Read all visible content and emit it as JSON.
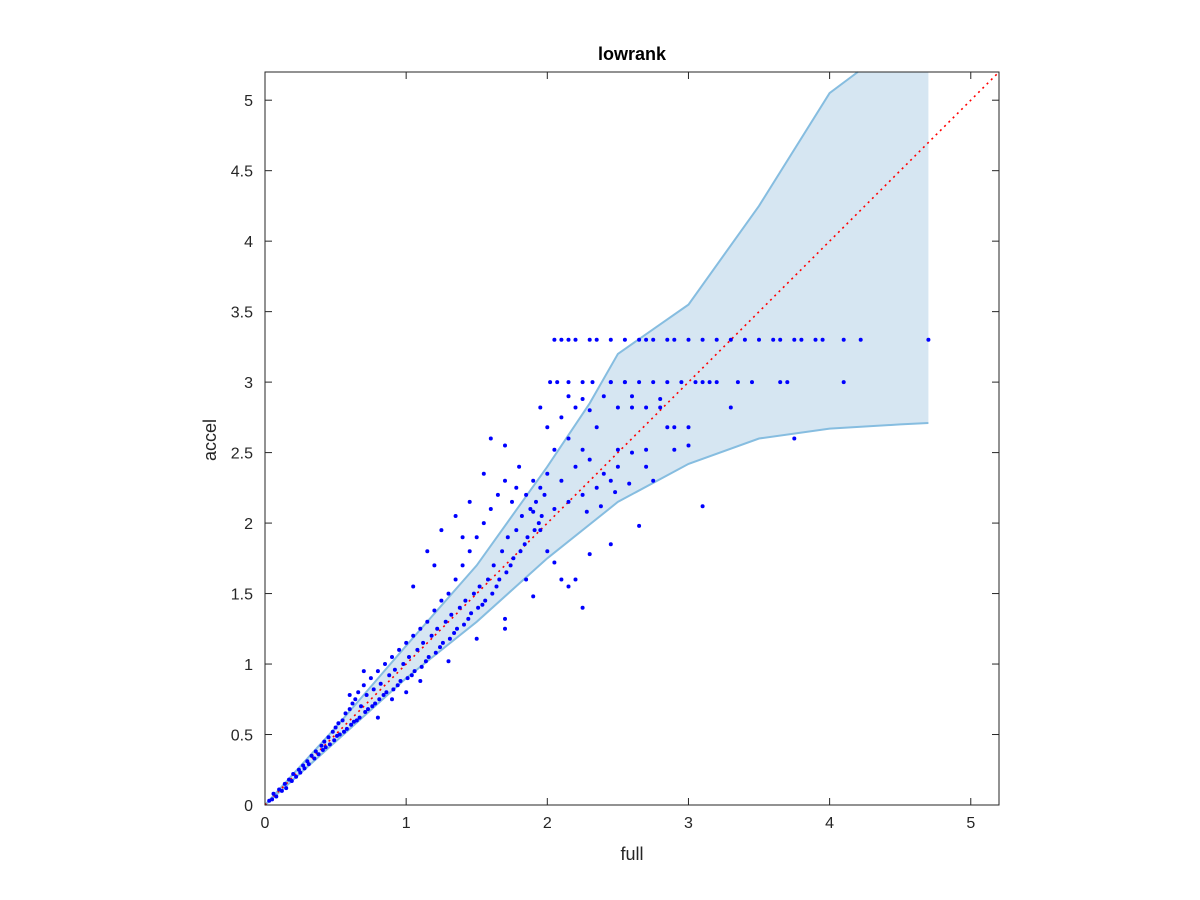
{
  "chart_data": {
    "type": "scatter",
    "title": "lowrank",
    "xlabel": "full",
    "ylabel": "accel",
    "xlim": [
      0,
      5.2
    ],
    "ylim": [
      0,
      5.2
    ],
    "xticks": [
      0,
      1,
      2,
      3,
      4,
      5
    ],
    "yticks": [
      0,
      0.5,
      1,
      1.5,
      2,
      2.5,
      3,
      3.5,
      4,
      4.5,
      5
    ],
    "xtick_labels": [
      "0",
      "1",
      "2",
      "3",
      "4",
      "5"
    ],
    "ytick_labels": [
      "0",
      "0.5",
      "1",
      "1.5",
      "2",
      "2.5",
      "3",
      "3.5",
      "4",
      "4.5",
      "5"
    ],
    "grid": false,
    "reference_line": {
      "style": "dotted",
      "color": "#ff0000",
      "from": [
        0,
        0
      ],
      "to": [
        5.2,
        5.2
      ]
    },
    "band": {
      "color": "#d6e6f2",
      "edge_color": "#86bde0",
      "upper": [
        [
          0,
          0
        ],
        [
          0.5,
          0.55
        ],
        [
          1,
          1.13
        ],
        [
          1.5,
          1.7
        ],
        [
          2,
          2.4
        ],
        [
          2.3,
          2.85
        ],
        [
          2.5,
          3.2
        ],
        [
          3,
          3.55
        ],
        [
          3.5,
          4.25
        ],
        [
          4,
          5.05
        ],
        [
          4.2,
          5.25
        ],
        [
          4.7,
          5.25
        ]
      ],
      "lower": [
        [
          0,
          0
        ],
        [
          0.5,
          0.45
        ],
        [
          1,
          0.9
        ],
        [
          1.5,
          1.3
        ],
        [
          2,
          1.75
        ],
        [
          2.5,
          2.15
        ],
        [
          3,
          2.42
        ],
        [
          3.5,
          2.6
        ],
        [
          4,
          2.67
        ],
        [
          4.5,
          2.7
        ],
        [
          4.7,
          2.71
        ]
      ]
    },
    "series": [
      {
        "marker_color": "#0000ff",
        "points": [
          [
            0.03,
            0.03
          ],
          [
            0.05,
            0.04
          ],
          [
            0.06,
            0.08
          ],
          [
            0.08,
            0.06
          ],
          [
            0.1,
            0.11
          ],
          [
            0.12,
            0.1
          ],
          [
            0.14,
            0.15
          ],
          [
            0.15,
            0.12
          ],
          [
            0.17,
            0.18
          ],
          [
            0.19,
            0.17
          ],
          [
            0.2,
            0.22
          ],
          [
            0.22,
            0.2
          ],
          [
            0.24,
            0.25
          ],
          [
            0.25,
            0.23
          ],
          [
            0.27,
            0.28
          ],
          [
            0.28,
            0.26
          ],
          [
            0.3,
            0.31
          ],
          [
            0.31,
            0.29
          ],
          [
            0.33,
            0.35
          ],
          [
            0.35,
            0.33
          ],
          [
            0.36,
            0.38
          ],
          [
            0.38,
            0.36
          ],
          [
            0.4,
            0.42
          ],
          [
            0.41,
            0.39
          ],
          [
            0.42,
            0.45
          ],
          [
            0.43,
            0.41
          ],
          [
            0.45,
            0.48
          ],
          [
            0.46,
            0.43
          ],
          [
            0.48,
            0.52
          ],
          [
            0.49,
            0.46
          ],
          [
            0.5,
            0.55
          ],
          [
            0.51,
            0.49
          ],
          [
            0.52,
            0.58
          ],
          [
            0.53,
            0.5
          ],
          [
            0.55,
            0.6
          ],
          [
            0.56,
            0.52
          ],
          [
            0.57,
            0.65
          ],
          [
            0.58,
            0.54
          ],
          [
            0.6,
            0.68
          ],
          [
            0.61,
            0.57
          ],
          [
            0.62,
            0.72
          ],
          [
            0.63,
            0.59
          ],
          [
            0.64,
            0.75
          ],
          [
            0.65,
            0.6
          ],
          [
            0.66,
            0.8
          ],
          [
            0.67,
            0.62
          ],
          [
            0.68,
            0.7
          ],
          [
            0.7,
            0.85
          ],
          [
            0.71,
            0.66
          ],
          [
            0.72,
            0.78
          ],
          [
            0.73,
            0.68
          ],
          [
            0.75,
            0.9
          ],
          [
            0.76,
            0.7
          ],
          [
            0.77,
            0.82
          ],
          [
            0.78,
            0.72
          ],
          [
            0.8,
            0.95
          ],
          [
            0.81,
            0.75
          ],
          [
            0.82,
            0.86
          ],
          [
            0.84,
            0.78
          ],
          [
            0.85,
            1.0
          ],
          [
            0.86,
            0.8
          ],
          [
            0.88,
            0.92
          ],
          [
            0.9,
            1.05
          ],
          [
            0.91,
            0.82
          ],
          [
            0.92,
            0.96
          ],
          [
            0.94,
            0.85
          ],
          [
            0.95,
            1.1
          ],
          [
            0.96,
            0.88
          ],
          [
            0.98,
            1.0
          ],
          [
            1.0,
            1.15
          ],
          [
            1.01,
            0.9
          ],
          [
            1.02,
            1.05
          ],
          [
            1.04,
            0.92
          ],
          [
            1.05,
            1.2
          ],
          [
            1.06,
            0.95
          ],
          [
            1.08,
            1.1
          ],
          [
            1.1,
            1.25
          ],
          [
            1.11,
            0.98
          ],
          [
            1.12,
            1.15
          ],
          [
            1.14,
            1.02
          ],
          [
            1.15,
            1.3
          ],
          [
            1.16,
            1.05
          ],
          [
            1.18,
            1.2
          ],
          [
            1.2,
            1.38
          ],
          [
            1.21,
            1.08
          ],
          [
            1.22,
            1.25
          ],
          [
            1.24,
            1.12
          ],
          [
            1.25,
            1.45
          ],
          [
            1.26,
            1.15
          ],
          [
            1.28,
            1.3
          ],
          [
            1.3,
            1.5
          ],
          [
            1.31,
            1.18
          ],
          [
            1.32,
            1.35
          ],
          [
            1.34,
            1.22
          ],
          [
            1.35,
            1.6
          ],
          [
            1.36,
            1.25
          ],
          [
            1.38,
            1.4
          ],
          [
            1.4,
            1.7
          ],
          [
            1.41,
            1.28
          ],
          [
            1.42,
            1.45
          ],
          [
            1.44,
            1.32
          ],
          [
            1.45,
            1.8
          ],
          [
            1.46,
            1.36
          ],
          [
            1.48,
            1.5
          ],
          [
            1.5,
            1.9
          ],
          [
            1.51,
            1.4
          ],
          [
            1.52,
            1.55
          ],
          [
            1.54,
            1.42
          ],
          [
            1.55,
            2.0
          ],
          [
            1.56,
            1.45
          ],
          [
            1.58,
            1.6
          ],
          [
            1.6,
            2.1
          ],
          [
            1.61,
            1.5
          ],
          [
            1.62,
            1.7
          ],
          [
            1.64,
            1.55
          ],
          [
            1.65,
            2.2
          ],
          [
            1.66,
            1.6
          ],
          [
            1.68,
            1.8
          ],
          [
            1.7,
            2.3
          ],
          [
            1.71,
            1.65
          ],
          [
            1.72,
            1.9
          ],
          [
            1.74,
            1.7
          ],
          [
            1.75,
            2.15
          ],
          [
            1.76,
            1.75
          ],
          [
            1.78,
            1.95
          ],
          [
            1.8,
            2.4
          ],
          [
            1.81,
            1.8
          ],
          [
            1.82,
            2.05
          ],
          [
            1.84,
            1.85
          ],
          [
            1.85,
            2.2
          ],
          [
            1.86,
            1.9
          ],
          [
            1.88,
            2.1
          ],
          [
            1.9,
            2.3
          ],
          [
            1.91,
            1.95
          ],
          [
            1.92,
            2.15
          ],
          [
            1.94,
            2.0
          ],
          [
            1.95,
            2.25
          ],
          [
            1.96,
            2.05
          ],
          [
            1.98,
            2.2
          ],
          [
            2.0,
            2.35
          ],
          [
            2.05,
            2.1
          ],
          [
            2.1,
            2.3
          ],
          [
            2.15,
            2.15
          ],
          [
            2.2,
            2.4
          ],
          [
            2.25,
            2.2
          ],
          [
            2.3,
            2.45
          ],
          [
            2.35,
            2.25
          ],
          [
            2.4,
            2.35
          ],
          [
            2.45,
            2.3
          ],
          [
            2.5,
            2.4
          ],
          [
            2.6,
            2.5
          ],
          [
            2.7,
            2.4
          ],
          [
            0.9,
            0.75
          ],
          [
            1.1,
            0.88
          ],
          [
            1.3,
            1.02
          ],
          [
            1.5,
            1.18
          ],
          [
            1.7,
            1.32
          ],
          [
            1.9,
            1.48
          ],
          [
            2.1,
            1.6
          ],
          [
            2.3,
            1.78
          ],
          [
            2.45,
            1.85
          ],
          [
            1.05,
            1.55
          ],
          [
            1.15,
            1.8
          ],
          [
            1.25,
            1.95
          ],
          [
            1.35,
            2.05
          ],
          [
            1.45,
            2.15
          ],
          [
            1.55,
            2.35
          ],
          [
            1.6,
            2.6
          ],
          [
            1.7,
            2.55
          ],
          [
            1.4,
            1.9
          ],
          [
            1.2,
            1.7
          ],
          [
            0.7,
            0.95
          ],
          [
            0.6,
            0.78
          ],
          [
            0.8,
            0.62
          ],
          [
            1.0,
            0.8
          ],
          [
            1.7,
            1.25
          ],
          [
            2.2,
            1.6
          ],
          [
            2.25,
            1.4
          ],
          [
            2.15,
            1.55
          ],
          [
            2.65,
            1.98
          ],
          [
            2.75,
            2.3
          ],
          [
            3.1,
            2.12
          ],
          [
            3.75,
            2.6
          ],
          [
            2.85,
            2.68
          ],
          [
            2.9,
            2.68
          ],
          [
            3.0,
            2.68
          ],
          [
            2.4,
            2.9
          ],
          [
            2.45,
            3.0
          ],
          [
            2.55,
            3.0
          ],
          [
            2.3,
            2.8
          ],
          [
            2.35,
            2.68
          ],
          [
            2.5,
            2.82
          ],
          [
            2.6,
            2.82
          ],
          [
            2.7,
            2.82
          ],
          [
            2.8,
            2.82
          ],
          [
            2.2,
            2.82
          ],
          [
            2.1,
            2.75
          ],
          [
            2.0,
            2.68
          ],
          [
            1.95,
            2.82
          ],
          [
            2.05,
            2.52
          ],
          [
            2.15,
            2.6
          ],
          [
            2.25,
            2.52
          ],
          [
            2.5,
            2.52
          ],
          [
            2.7,
            2.52
          ],
          [
            2.9,
            2.52
          ],
          [
            3.0,
            2.55
          ],
          [
            2.15,
            3.3
          ],
          [
            2.2,
            3.3
          ],
          [
            2.3,
            3.3
          ],
          [
            2.35,
            3.3
          ],
          [
            2.45,
            3.3
          ],
          [
            2.55,
            3.3
          ],
          [
            2.65,
            3.3
          ],
          [
            2.7,
            3.3
          ],
          [
            2.75,
            3.3
          ],
          [
            2.85,
            3.3
          ],
          [
            2.9,
            3.3
          ],
          [
            3.0,
            3.3
          ],
          [
            3.1,
            3.3
          ],
          [
            3.2,
            3.3
          ],
          [
            3.3,
            3.3
          ],
          [
            3.4,
            3.3
          ],
          [
            3.5,
            3.3
          ],
          [
            3.6,
            3.3
          ],
          [
            3.65,
            3.3
          ],
          [
            3.75,
            3.3
          ],
          [
            3.8,
            3.3
          ],
          [
            3.9,
            3.3
          ],
          [
            3.95,
            3.3
          ],
          [
            4.1,
            3.3
          ],
          [
            4.22,
            3.3
          ],
          [
            4.7,
            3.3
          ],
          [
            2.05,
            3.3
          ],
          [
            2.1,
            3.3
          ],
          [
            2.02,
            3.0
          ],
          [
            2.07,
            3.0
          ],
          [
            2.15,
            3.0
          ],
          [
            2.25,
            3.0
          ],
          [
            2.32,
            3.0
          ],
          [
            2.45,
            3.0
          ],
          [
            2.55,
            3.0
          ],
          [
            2.65,
            3.0
          ],
          [
            2.75,
            3.0
          ],
          [
            2.85,
            3.0
          ],
          [
            2.95,
            3.0
          ],
          [
            3.05,
            3.0
          ],
          [
            3.1,
            3.0
          ],
          [
            3.15,
            3.0
          ],
          [
            3.2,
            3.0
          ],
          [
            3.35,
            3.0
          ],
          [
            3.45,
            3.0
          ],
          [
            3.65,
            3.0
          ],
          [
            3.7,
            3.0
          ],
          [
            4.1,
            3.0
          ],
          [
            3.3,
            2.82
          ],
          [
            2.15,
            2.9
          ],
          [
            2.25,
            2.88
          ],
          [
            2.6,
            2.9
          ],
          [
            2.8,
            2.88
          ],
          [
            1.85,
            1.6
          ],
          [
            2.0,
            1.8
          ],
          [
            1.9,
            2.08
          ],
          [
            1.78,
            2.25
          ],
          [
            1.95,
            1.95
          ],
          [
            2.05,
            1.72
          ],
          [
            2.28,
            2.08
          ],
          [
            2.38,
            2.12
          ],
          [
            2.48,
            2.22
          ],
          [
            2.58,
            2.28
          ]
        ]
      }
    ]
  }
}
